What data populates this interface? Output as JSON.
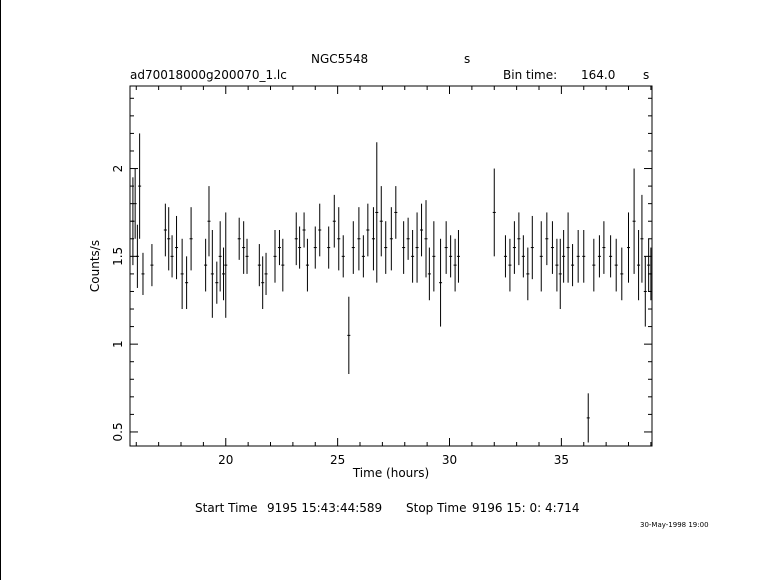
{
  "header": {
    "object": "NGC5548",
    "object_unit": "s",
    "file": "ad70018000g200070_1.lc",
    "bin_label": "Bin time:",
    "bin_value": "164.0",
    "bin_unit": "s"
  },
  "footer": {
    "start_label": "Start Time",
    "start_value": "9195 15:43:44:589",
    "stop_label": "Stop Time",
    "stop_value": "9196 15: 0: 4:714",
    "date_stamp": "30-May-1998 19:00"
  },
  "chart_data": {
    "type": "scatter",
    "xlabel": "Time (hours)",
    "ylabel": "Counts/s",
    "xlim": [
      15.72,
      39.05
    ],
    "ylim": [
      0.42,
      2.47
    ],
    "xticks": [
      20,
      25,
      30,
      35
    ],
    "yticks": [
      0.5,
      1,
      1.5,
      2
    ],
    "error_bars": true,
    "series": [
      {
        "x": [
          15.85,
          15.95,
          16.05,
          16.15,
          16.3,
          16.7,
          17.3,
          17.45,
          17.6,
          17.8,
          18.05,
          18.25,
          18.45,
          19.1,
          19.25,
          19.4,
          19.6,
          19.75,
          19.9,
          20.0,
          20.6,
          20.8,
          20.95,
          21.5,
          21.65,
          21.8,
          22.2,
          22.4,
          22.55,
          23.15,
          23.3,
          23.5,
          23.65,
          24.0,
          24.2,
          24.6,
          24.85,
          25.05,
          25.25,
          25.5,
          25.7,
          25.95,
          26.15,
          26.35,
          26.6,
          26.75,
          26.95,
          27.15,
          27.4,
          27.6,
          27.95,
          28.15,
          28.35,
          28.55,
          28.75,
          28.95,
          29.1,
          29.3,
          29.6,
          29.85,
          30.05,
          30.25,
          30.4,
          32.0,
          32.5,
          32.7,
          32.9,
          33.1,
          33.3,
          33.5,
          33.7,
          34.1,
          34.35,
          34.6,
          34.8,
          34.95,
          35.1,
          35.3,
          35.5,
          35.75,
          36.0,
          36.2,
          36.45,
          36.7,
          36.9,
          37.2,
          37.45,
          37.7,
          38.0,
          38.25,
          38.45,
          38.6,
          38.75,
          38.9,
          39.0
        ],
        "y": [
          1.7,
          1.8,
          1.5,
          1.9,
          1.4,
          1.45,
          1.65,
          1.6,
          1.5,
          1.55,
          1.4,
          1.35,
          1.6,
          1.45,
          1.7,
          1.4,
          1.35,
          1.5,
          1.4,
          1.45,
          1.6,
          1.55,
          1.5,
          1.45,
          1.35,
          1.4,
          1.5,
          1.55,
          1.45,
          1.6,
          1.55,
          1.65,
          1.45,
          1.55,
          1.65,
          1.55,
          1.7,
          1.6,
          1.5,
          1.05,
          1.55,
          1.6,
          1.5,
          1.65,
          1.6,
          1.75,
          1.7,
          1.55,
          1.6,
          1.75,
          1.55,
          1.6,
          1.5,
          1.55,
          1.65,
          1.6,
          1.4,
          1.5,
          1.35,
          1.55,
          1.5,
          1.45,
          1.5,
          1.75,
          1.5,
          1.45,
          1.55,
          1.6,
          1.5,
          1.4,
          1.55,
          1.5,
          1.6,
          1.55,
          1.45,
          1.4,
          1.5,
          1.55,
          1.45,
          1.5,
          1.5,
          0.58,
          1.45,
          1.5,
          1.55,
          1.5,
          1.45,
          1.4,
          1.55,
          1.7,
          1.45,
          1.6,
          1.3,
          1.45,
          1.4
        ],
        "err": [
          0.25,
          0.2,
          0.18,
          0.3,
          0.12,
          0.12,
          0.15,
          0.18,
          0.12,
          0.18,
          0.2,
          0.15,
          0.18,
          0.15,
          0.2,
          0.25,
          0.12,
          0.2,
          0.15,
          0.3,
          0.12,
          0.15,
          0.1,
          0.12,
          0.15,
          0.12,
          0.15,
          0.1,
          0.15,
          0.15,
          0.12,
          0.1,
          0.15,
          0.12,
          0.15,
          0.12,
          0.15,
          0.18,
          0.12,
          0.22,
          0.15,
          0.18,
          0.12,
          0.15,
          0.18,
          0.4,
          0.2,
          0.15,
          0.18,
          0.15,
          0.15,
          0.12,
          0.15,
          0.2,
          0.15,
          0.22,
          0.15,
          0.2,
          0.25,
          0.15,
          0.12,
          0.15,
          0.15,
          0.25,
          0.12,
          0.15,
          0.15,
          0.15,
          0.12,
          0.15,
          0.18,
          0.2,
          0.15,
          0.15,
          0.15,
          0.2,
          0.15,
          0.2,
          0.12,
          0.15,
          0.15,
          0.14,
          0.15,
          0.12,
          0.15,
          0.12,
          0.15,
          0.15,
          0.2,
          0.3,
          0.2,
          0.25,
          0.2,
          0.15,
          0.15
        ]
      }
    ]
  }
}
